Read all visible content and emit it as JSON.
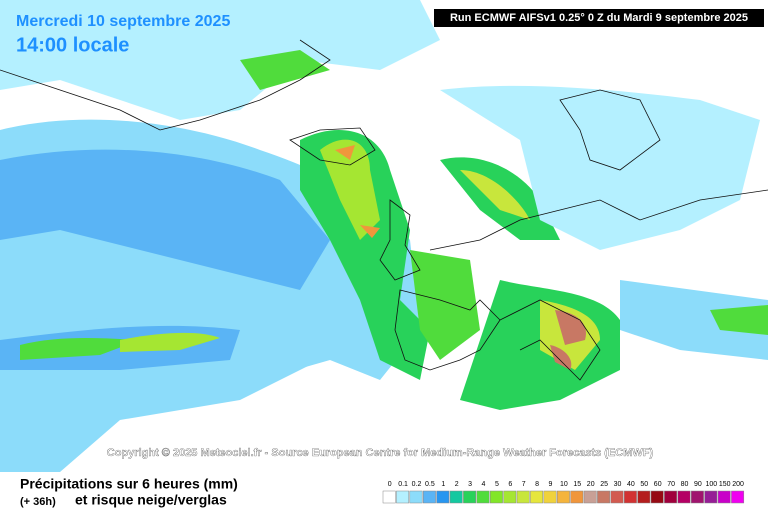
{
  "header": {
    "date": "Mercredi 10 septembre 2025",
    "time": "14:00 locale",
    "run": "Run ECMWF AIFSv1 0.25° 0 Z du Mardi 9 septembre 2025"
  },
  "copyright": "Copyright © 2025 Meteociel.fr - Source European Centre for Medium-Range Weather Forecasts (ECMWF)",
  "footer": {
    "title": "Précipitations sur 6 heures (mm)",
    "lead": "(+ 36h)",
    "subtitle": "et risque neige/verglas"
  },
  "legend": [
    {
      "label": "0",
      "color": "#ffffff"
    },
    {
      "label": "0.1",
      "color": "#b4f0ff"
    },
    {
      "label": "0.2",
      "color": "#8cdcfa"
    },
    {
      "label": "0.5",
      "color": "#5ab4f5"
    },
    {
      "label": "1",
      "color": "#2896f0"
    },
    {
      "label": "2",
      "color": "#14c8a0"
    },
    {
      "label": "3",
      "color": "#28d25a"
    },
    {
      "label": "4",
      "color": "#50dc3c"
    },
    {
      "label": "5",
      "color": "#82e628"
    },
    {
      "label": "6",
      "color": "#a5e632"
    },
    {
      "label": "7",
      "color": "#c8e63c"
    },
    {
      "label": "8",
      "color": "#e6e63c"
    },
    {
      "label": "9",
      "color": "#f0d23c"
    },
    {
      "label": "10",
      "color": "#f5b43c"
    },
    {
      "label": "15",
      "color": "#f0963c"
    },
    {
      "label": "20",
      "color": "#c8a096"
    },
    {
      "label": "25",
      "color": "#c87864"
    },
    {
      "label": "30",
      "color": "#d25a50"
    },
    {
      "label": "40",
      "color": "#d23232"
    },
    {
      "label": "50",
      "color": "#b41e1e"
    },
    {
      "label": "60",
      "color": "#960a14"
    },
    {
      "label": "70",
      "color": "#a0003c"
    },
    {
      "label": "80",
      "color": "#b40064"
    },
    {
      "label": "90",
      "color": "#a0146e"
    },
    {
      "label": "100",
      "color": "#961e96"
    },
    {
      "label": "150",
      "color": "#c800c8"
    },
    {
      "label": "200",
      "color": "#f000f0"
    }
  ]
}
